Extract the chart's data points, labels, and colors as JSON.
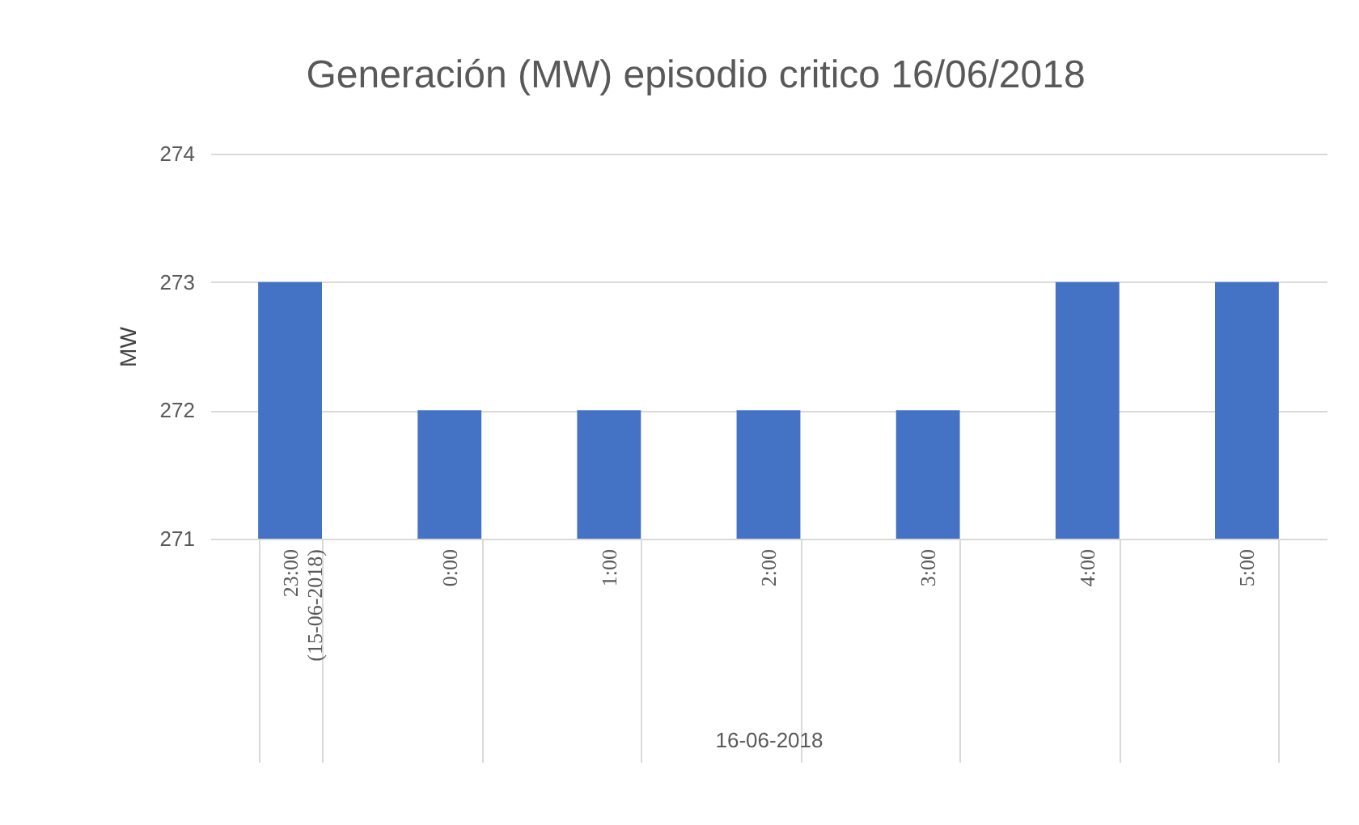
{
  "chart_data": {
    "type": "bar",
    "title": "Generación (MW) episodio critico 16/06/2018",
    "xlabel": "16-06-2018",
    "ylabel": "MW",
    "categories": [
      "23:00 (15-06-2018)",
      "0:00",
      "1:00",
      "2:00",
      "3:00",
      "4:00",
      "5:00"
    ],
    "values": [
      273,
      272,
      272,
      272,
      272,
      273,
      273
    ],
    "color": "#4472c4",
    "ylim": [
      271,
      274
    ],
    "yticks": [
      271,
      272,
      273,
      274
    ],
    "grid": "y"
  }
}
